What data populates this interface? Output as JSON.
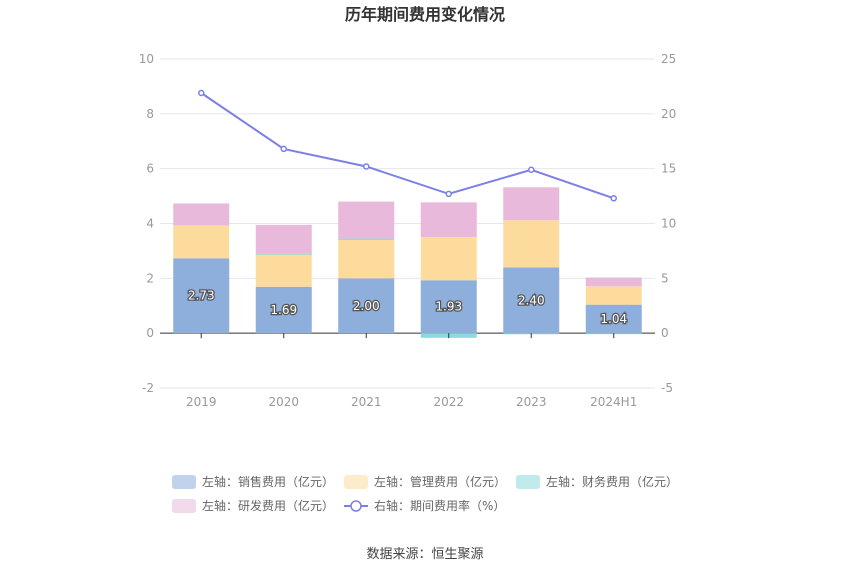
{
  "chart_data": {
    "type": "bar",
    "title": "历年期间费用变化情况",
    "source": "数据来源：恒生聚源",
    "categories": [
      "2019",
      "2020",
      "2021",
      "2022",
      "2023",
      "2024H1"
    ],
    "left_axis": {
      "min": -2,
      "max": 10,
      "ticks": [
        "-2",
        "0",
        "2",
        "4",
        "6",
        "8",
        "10"
      ]
    },
    "right_axis": {
      "min": -5,
      "max": 25,
      "ticks": [
        "-5",
        "0",
        "5",
        "10",
        "15",
        "20",
        "25"
      ]
    },
    "grid": true,
    "legend_position": "bottom",
    "series": [
      {
        "name": "左轴：销售费用（亿元）",
        "type": "bar",
        "axis": "left",
        "color": "#8eafdc",
        "values": [
          2.73,
          1.69,
          2.0,
          1.93,
          2.4,
          1.04
        ],
        "labels": [
          "2.73",
          "1.69",
          "2.00",
          "1.93",
          "2.40",
          "1.04"
        ]
      },
      {
        "name": "左轴：管理费用（亿元）",
        "type": "bar",
        "axis": "left",
        "color": "#fddb9d",
        "values": [
          1.2,
          1.2,
          1.4,
          1.57,
          1.72,
          0.67
        ]
      },
      {
        "name": "左轴：财务费用（亿元）",
        "type": "bar",
        "axis": "left",
        "color": "#8ed9de",
        "values": [
          0.0,
          0.01,
          0.05,
          -0.17,
          -0.04,
          -0.03
        ]
      },
      {
        "name": "左轴：研发费用（亿元）",
        "type": "bar",
        "axis": "left",
        "color": "#e8b9da",
        "values": [
          0.8,
          1.05,
          1.35,
          1.27,
          1.2,
          0.32
        ]
      },
      {
        "name": "右轴：期间费用率（%）",
        "type": "line",
        "axis": "right",
        "color": "#7b7fe8",
        "values": [
          21.9,
          16.8,
          15.2,
          12.7,
          14.9,
          12.3
        ]
      }
    ]
  }
}
